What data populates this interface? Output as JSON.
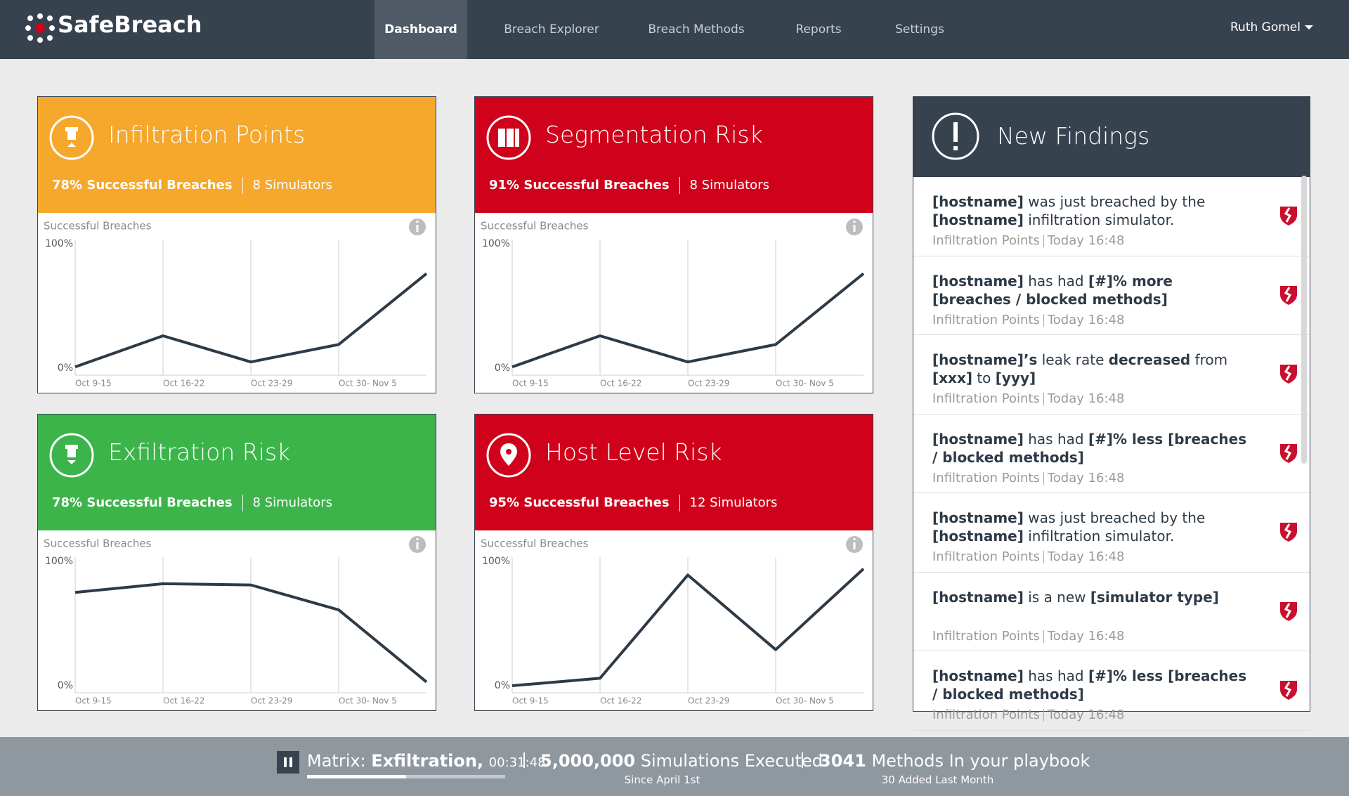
{
  "header": {
    "logo": "SafeBreach",
    "nav": [
      "Dashboard",
      "Breach Explorer",
      "Breach Methods",
      "Reports",
      "Settings"
    ],
    "active": 0,
    "user": "Ruth Gomel"
  },
  "chart_data": [
    {
      "type": "line",
      "title": "Infiltration Points",
      "breaches": "78% Successful Breaches",
      "simulators": "8 Simulators",
      "header_color": "#f5a82c",
      "y_label": "Successful Breaches",
      "categories": [
        "Oct 9-15",
        "Oct 16-22",
        "Oct 23-29",
        "Oct 30- Nov 5",
        null
      ],
      "values": [
        1,
        26,
        5,
        19,
        76
      ],
      "color": "#2d3a47",
      "ylim": [
        0,
        100
      ],
      "yticks": [
        {
          "value": 0,
          "label": "0%"
        },
        {
          "value": 100,
          "label": "100%"
        }
      ]
    },
    {
      "type": "line",
      "title": "Segmentation Risk",
      "breaches": "91% Successful Breaches",
      "simulators": "8 Simulators",
      "header_color": "#d0021b",
      "y_label": "Successful Breaches",
      "categories": [
        "Oct 9-15",
        "Oct 16-22",
        "Oct 23-29",
        "Oct 30- Nov 5",
        null
      ],
      "values": [
        1,
        26,
        5,
        19,
        76
      ],
      "color": "#2d3a47",
      "ylim": [
        0,
        100
      ],
      "yticks": [
        {
          "value": 0,
          "label": "0%"
        },
        {
          "value": 100,
          "label": "100%"
        }
      ]
    },
    {
      "type": "line",
      "title": "Exfiltration Risk",
      "breaches": "78% Successful Breaches",
      "simulators": "8 Simulators",
      "header_color": "#3cb44a",
      "y_label": "Successful Breaches",
      "categories": [
        "Oct 9-15",
        "Oct 16-22",
        "Oct 23-29",
        "Oct 30- Nov 5",
        null
      ],
      "values": [
        75,
        82,
        81,
        61,
        3
      ],
      "color": "#2d3a47",
      "ylim": [
        0,
        100
      ],
      "yticks": [
        {
          "value": 0,
          "label": "0%"
        },
        {
          "value": 100,
          "label": "100%"
        }
      ]
    },
    {
      "type": "line",
      "title": "Host Level Risk",
      "breaches": "95% Successful Breaches",
      "simulators": "12 Simulators",
      "header_color": "#d0021b",
      "y_label": "Successful Breaches",
      "categories": [
        "Oct 9-15",
        "Oct 16-22",
        "Oct 23-29",
        "Oct 30- Nov 5",
        null
      ],
      "values": [
        0,
        6,
        89,
        29,
        94
      ],
      "color": "#2d3a47",
      "ylim": [
        0,
        100
      ],
      "yticks": [
        {
          "value": 0,
          "label": "0%"
        },
        {
          "value": 100,
          "label": "100%"
        }
      ]
    }
  ],
  "findings": {
    "title": "New Findings",
    "items": [
      {
        "parts": [
          "[hostname]",
          " was just breached by the ",
          "[hostname]",
          " infiltration simulator."
        ],
        "source": "Infiltration Points",
        "time": "Today 16:48"
      },
      {
        "parts": [
          "[hostname]",
          " has had ",
          "[#]% more [breaches / blocked methods]"
        ],
        "source": "Infiltration Points",
        "time": "Today 16:48"
      },
      {
        "parts": [
          "[hostname]’s",
          " leak rate ",
          "decreased",
          " from ",
          "[xxx]",
          " to ",
          "[yyy]"
        ],
        "source": "Infiltration Points",
        "time": "Today 16:48"
      },
      {
        "parts": [
          "[hostname]",
          " has had ",
          "[#]% less [breaches / blocked methods]"
        ],
        "source": "Infiltration Points",
        "time": "Today 16:48"
      },
      {
        "parts": [
          "[hostname]",
          " was just breached by the ",
          "[hostname]",
          " infiltration simulator."
        ],
        "source": "Infiltration Points",
        "time": "Today 16:48"
      },
      {
        "parts": [
          "[hostname]",
          " is a new ",
          "[simulator type]"
        ],
        "source": "Infiltration Points",
        "time": "Today 16:48"
      },
      {
        "parts": [
          "[hostname]",
          " has had ",
          "[#]% less [breaches / blocked methods]"
        ],
        "source": "Infiltration Points",
        "time": "Today 16:48"
      }
    ]
  },
  "footer": {
    "matrix_label": "Matrix:",
    "matrix_name": "Exfiltration,",
    "timer": "00:31:48",
    "progress": 50,
    "simulations_count": "5,000,000",
    "simulations_label": "Simulations Executed",
    "simulations_sub": "Since April 1st",
    "methods_count": "3041",
    "methods_label": "Methods In your playbook",
    "methods_sub": "30 Added Last Month"
  }
}
